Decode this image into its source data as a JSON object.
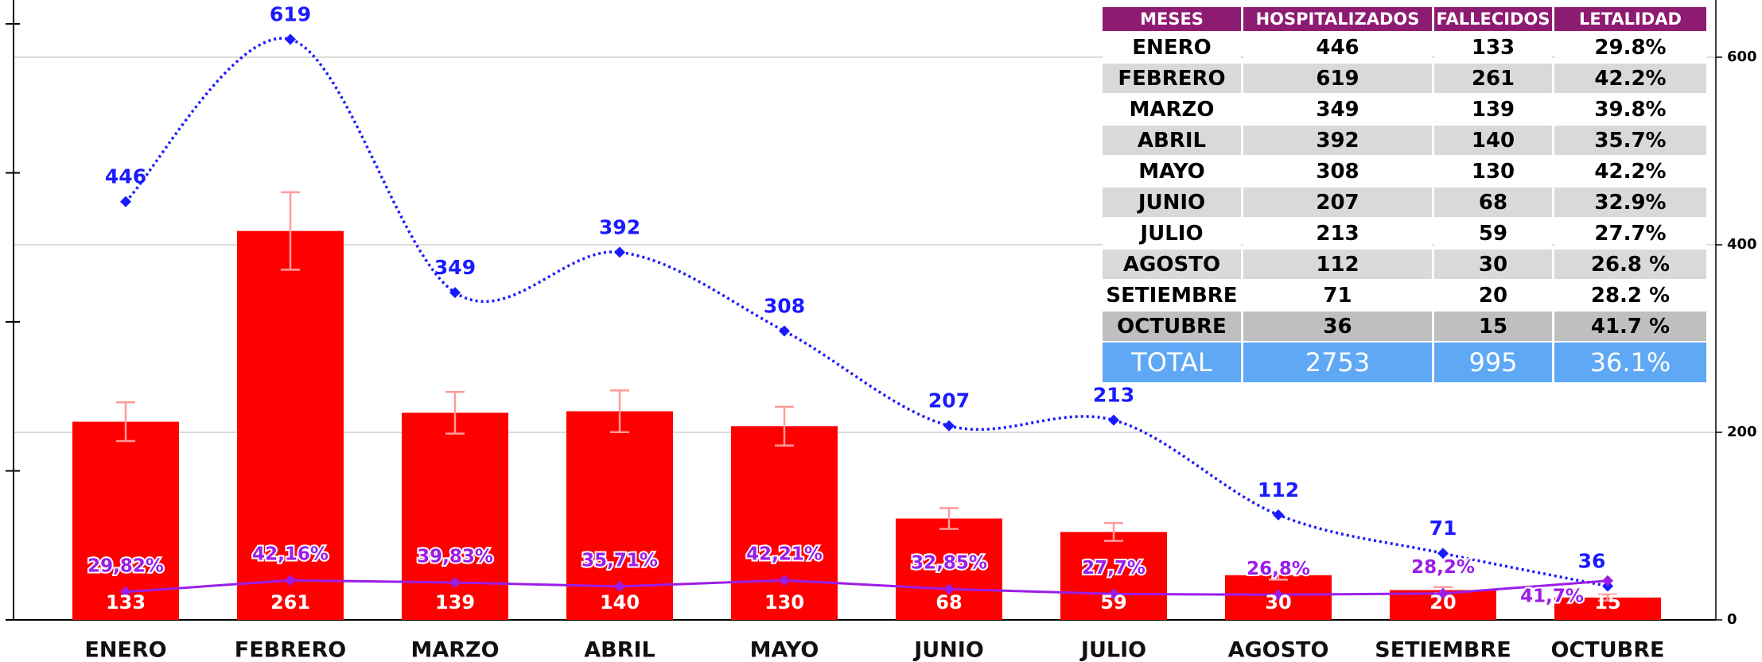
{
  "chart_data": {
    "type": "bar",
    "categories": [
      "ENERO",
      "FEBRERO",
      "MARZO",
      "ABRIL",
      "MAYO",
      "JUNIO",
      "JULIO",
      "AGOSTO",
      "SETIEMBRE",
      "OCTUBRE"
    ],
    "series": [
      {
        "type": "bar",
        "color": "#ff0000",
        "error_color": "#ff9a9a",
        "values": [
          133,
          261,
          139,
          140,
          130,
          68,
          59,
          30,
          20,
          15
        ],
        "errors": [
          13,
          26,
          14,
          14,
          13,
          7,
          6,
          3,
          2,
          2
        ]
      },
      {
        "type": "line",
        "axis": "y2",
        "color": "#1a1aff",
        "values": [
          446,
          619,
          349,
          392,
          308,
          207,
          213,
          112,
          71,
          36
        ]
      },
      {
        "type": "line",
        "axis": "y2",
        "color": "#9b1de8",
        "values": [
          29.82,
          42.16,
          39.83,
          35.71,
          42.21,
          32.85,
          27.7,
          26.8,
          28.2,
          41.7
        ],
        "value_labels": [
          "29,82%",
          "42,16%",
          "39,83%",
          "35,71%",
          "42,21%",
          "32,85%",
          "27,7%",
          "26,8%",
          "28,2%",
          "41,7%"
        ]
      }
    ],
    "ylim": [
      0,
      416
    ],
    "yticks": [
      0,
      100,
      200,
      300,
      400
    ],
    "y2lim": [
      0,
      661
    ],
    "y2ticks": [
      0,
      200,
      400,
      600
    ],
    "grid": true
  },
  "table": {
    "header": [
      "MESES",
      "HOSPITALIZADOS",
      "FALLECIDOS",
      "LETALIDAD"
    ],
    "rows": [
      [
        "ENERO",
        "446",
        "133",
        "29.8%"
      ],
      [
        "FEBRERO",
        "619",
        "261",
        "42.2%"
      ],
      [
        "MARZO",
        "349",
        "139",
        "39.8%"
      ],
      [
        "ABRIL",
        "392",
        "140",
        "35.7%"
      ],
      [
        "MAYO",
        "308",
        "130",
        "42.2%"
      ],
      [
        "JUNIO",
        "207",
        "68",
        "32.9%"
      ],
      [
        "JULIO",
        "213",
        "59",
        "27.7%"
      ],
      [
        "AGOSTO",
        "112",
        "30",
        "26.8 %"
      ],
      [
        "SETIEMBRE",
        "71",
        "20",
        "28.2 %"
      ],
      [
        "OCTUBRE",
        "36",
        "15",
        "41.7 %"
      ]
    ],
    "total": [
      "TOTAL",
      "2753",
      "995",
      "36.1%"
    ]
  }
}
